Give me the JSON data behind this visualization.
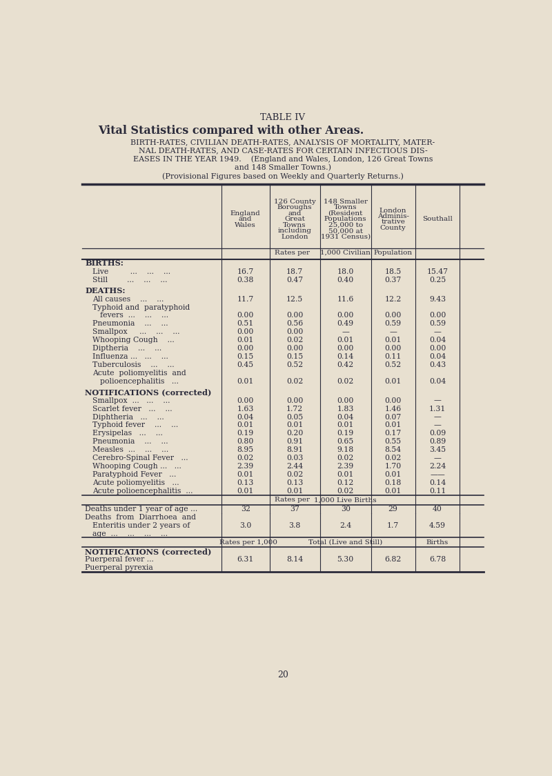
{
  "bg_color": "#e8e0d0",
  "title_line1": "TABLE IV",
  "title_line2": "Vital Statistics compared with other Areas.",
  "subtitle_lines": [
    "BIRTH-RATES, CIVILIAN DEATH-RATES, ANALYSIS OF MORTALITY, MATER-",
    "NAL DEATH-RATES, AND CASE-RATES FOR CERTAIN INFECTIOUS DIS-",
    "EASES IN THE YEAR 1949.    (England and Wales, London, 126 Great Towns",
    "and 148 Smaller Towns.)",
    "(Provisional Figures based on Weekly and Quarterly Returns.)"
  ],
  "col_headers": [
    "England\nand\nWales",
    "126 County\nBoroughs\nand\nGreat\nTowns\nincluding\nLondon",
    "148 Smaller\nTowns\n(Resident\nPopulations\n25,000 to\n50,000 at\n1931 Census)",
    "London\nAdminis-\ntrative\nCounty",
    "Southall"
  ],
  "rows": [
    {
      "label": "BIRTHS:",
      "indent": 0,
      "bold": true,
      "values": [
        "",
        "",
        "",
        "",
        ""
      ],
      "spacer": false
    },
    {
      "label": "Live         ...    ...    ...",
      "indent": 1,
      "bold": false,
      "values": [
        "16.7",
        "18.7",
        "18.0",
        "18.5",
        "15.47"
      ],
      "spacer": false
    },
    {
      "label": "Still        ...    ...    ...",
      "indent": 1,
      "bold": false,
      "values": [
        "0.38",
        "0.47",
        "0.40",
        "0.37",
        "0.25"
      ],
      "spacer": false
    },
    {
      "label": "",
      "indent": 0,
      "bold": false,
      "values": [
        "",
        "",
        "",
        "",
        ""
      ],
      "spacer": true
    },
    {
      "label": "DEATHS:",
      "indent": 0,
      "bold": true,
      "values": [
        "",
        "",
        "",
        "",
        ""
      ],
      "spacer": false
    },
    {
      "label": "All causes    ...    ...",
      "indent": 1,
      "bold": false,
      "values": [
        "11.7",
        "12.5",
        "11.6",
        "12.2",
        "9.43"
      ],
      "spacer": false
    },
    {
      "label": "Typhoid and  paratyphoid",
      "indent": 1,
      "bold": false,
      "values": [
        "",
        "",
        "",
        "",
        ""
      ],
      "spacer": false
    },
    {
      "label": "fevers  ...    ...    ...",
      "indent": 2,
      "bold": false,
      "values": [
        "0.00",
        "0.00",
        "0.00",
        "0.00",
        "0.00"
      ],
      "spacer": false
    },
    {
      "label": "Pneumonia    ...    ...",
      "indent": 1,
      "bold": false,
      "values": [
        "0.51",
        "0.56",
        "0.49",
        "0.59",
        "0.59"
      ],
      "spacer": false
    },
    {
      "label": "Smallpox     ...    ...    ...",
      "indent": 1,
      "bold": false,
      "values": [
        "0.00",
        "0.00",
        "—",
        "—",
        "—"
      ],
      "spacer": false
    },
    {
      "label": "Whooping Cough    ...",
      "indent": 1,
      "bold": false,
      "values": [
        "0.01",
        "0.02",
        "0.01",
        "0.01",
        "0.04"
      ],
      "spacer": false
    },
    {
      "label": "Diptheria    ...    ...",
      "indent": 1,
      "bold": false,
      "values": [
        "0.00",
        "0.00",
        "0.00",
        "0.00",
        "0.00"
      ],
      "spacer": false
    },
    {
      "label": "Influenza ...   ...    ...",
      "indent": 1,
      "bold": false,
      "values": [
        "0.15",
        "0.15",
        "0.14",
        "0.11",
        "0.04"
      ],
      "spacer": false
    },
    {
      "label": "Tuberculosis    ...    ...",
      "indent": 1,
      "bold": false,
      "values": [
        "0.45",
        "0.52",
        "0.42",
        "0.52",
        "0.43"
      ],
      "spacer": false
    },
    {
      "label": "Acute  poliomyelitis  and",
      "indent": 1,
      "bold": false,
      "values": [
        "",
        "",
        "",
        "",
        ""
      ],
      "spacer": false
    },
    {
      "label": "polioencephalitis   ...",
      "indent": 2,
      "bold": false,
      "values": [
        "0.01",
        "0.02",
        "0.02",
        "0.01",
        "0.04"
      ],
      "spacer": false
    },
    {
      "label": "",
      "indent": 0,
      "bold": false,
      "values": [
        "",
        "",
        "",
        "",
        ""
      ],
      "spacer": true
    },
    {
      "label": "NOTIFICATIONS (corrected)",
      "indent": 0,
      "bold": true,
      "values": [
        "",
        "",
        "",
        "",
        ""
      ],
      "spacer": false
    },
    {
      "label": "Smallpox  ...   ...    ...",
      "indent": 1,
      "bold": false,
      "values": [
        "0.00",
        "0.00",
        "0.00",
        "0.00",
        "—"
      ],
      "spacer": false
    },
    {
      "label": "Scarlet fever   ...    ...",
      "indent": 1,
      "bold": false,
      "values": [
        "1.63",
        "1.72",
        "1.83",
        "1.46",
        "1.31"
      ],
      "spacer": false
    },
    {
      "label": "Diphtheria   ...    ...",
      "indent": 1,
      "bold": false,
      "values": [
        "0.04",
        "0.05",
        "0.04",
        "0.07",
        "—"
      ],
      "spacer": false
    },
    {
      "label": "Typhoid fever    ...    ...",
      "indent": 1,
      "bold": false,
      "values": [
        "0.01",
        "0.01",
        "0.01",
        "0.01",
        "—"
      ],
      "spacer": false
    },
    {
      "label": "Erysipelas   ...    ...",
      "indent": 1,
      "bold": false,
      "values": [
        "0.19",
        "0.20",
        "0.19",
        "0.17",
        "0.09"
      ],
      "spacer": false
    },
    {
      "label": "Pneumonia    ...    ...",
      "indent": 1,
      "bold": false,
      "values": [
        "0.80",
        "0.91",
        "0.65",
        "0.55",
        "0.89"
      ],
      "spacer": false
    },
    {
      "label": "Measles  ...    ...    ...",
      "indent": 1,
      "bold": false,
      "values": [
        "8.95",
        "8.91",
        "9.18",
        "8.54",
        "3.45"
      ],
      "spacer": false
    },
    {
      "label": "Cerebro-Spinal Fever   ...",
      "indent": 1,
      "bold": false,
      "values": [
        "0.02",
        "0.03",
        "0.02",
        "0.02",
        "—"
      ],
      "spacer": false
    },
    {
      "label": "Whooping Cough ...   ...",
      "indent": 1,
      "bold": false,
      "values": [
        "2.39",
        "2.44",
        "2.39",
        "1.70",
        "2.24"
      ],
      "spacer": false
    },
    {
      "label": "Paratyphoid Fever   ...",
      "indent": 1,
      "bold": false,
      "values": [
        "0.01",
        "0.02",
        "0.01",
        "0.01",
        "——"
      ],
      "spacer": false
    },
    {
      "label": "Acute poliomyelitis   ...",
      "indent": 1,
      "bold": false,
      "values": [
        "0.13",
        "0.13",
        "0.12",
        "0.18",
        "0.14"
      ],
      "spacer": false
    },
    {
      "label": "Acute polioencephalitis  ...",
      "indent": 1,
      "bold": false,
      "values": [
        "0.01",
        "0.01",
        "0.02",
        "0.01",
        "0.11"
      ],
      "spacer": false
    }
  ],
  "rows2": [
    {
      "label": "Deaths under 1 year of age ...",
      "label2": "",
      "label3": "",
      "values": [
        "32",
        "37",
        "30",
        "29",
        "40"
      ]
    },
    {
      "label": "Deaths  from  Diarrhoea  and",
      "label2": "Enteritis under 2 years of",
      "label3": "age  ...    ...    ...    ...",
      "values": [
        "3.0",
        "3.8",
        "2.4",
        "1.7",
        "4.59"
      ]
    }
  ],
  "rows3_label1": "NOTIFICATIONS (corrected)",
  "rows3_label2": "Puerperal fever ...",
  "rows3_label3": "Puerperal pyrexia",
  "rows3_values": [
    "6.31",
    "8.14",
    "5.30",
    "6.82",
    "6.78"
  ],
  "page_number": "20",
  "text_color": "#2a2a3a",
  "line_color": "#2a2a3a"
}
